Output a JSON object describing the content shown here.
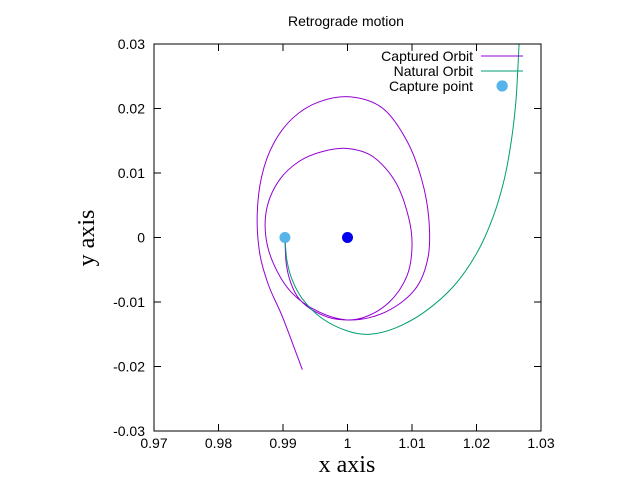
{
  "chart_data": {
    "type": "scatter",
    "title": "Retrograde motion",
    "xlabel": "x axis",
    "ylabel": "y axis",
    "xlim": [
      0.97,
      1.03
    ],
    "ylim": [
      -0.03,
      0.03
    ],
    "x_ticks": [
      0.97,
      0.98,
      0.99,
      1,
      1.01,
      1.02,
      1.03
    ],
    "x_tick_labels": [
      "0.97",
      "0.98",
      "0.99",
      "1",
      "1.01",
      "1.02",
      "1.03"
    ],
    "y_ticks": [
      -0.03,
      -0.02,
      -0.01,
      0,
      0.01,
      0.02,
      0.03
    ],
    "y_tick_labels": [
      "-0.03",
      "-0.02",
      "-0.01",
      "0",
      "0.01",
      "0.02",
      "0.03"
    ],
    "grid": false,
    "legend_position": "top-right",
    "series": [
      {
        "name": "Captured Orbit",
        "type": "line",
        "color": "#9400d3",
        "points": [
          [
            0.9903,
            0.0
          ],
          [
            0.9905,
            -0.004
          ],
          [
            0.9912,
            -0.007
          ],
          [
            0.9925,
            -0.0095
          ],
          [
            0.995,
            -0.0115
          ],
          [
            0.9985,
            -0.0127
          ],
          [
            1.0025,
            -0.0124
          ],
          [
            1.0065,
            -0.01
          ],
          [
            1.0092,
            -0.006
          ],
          [
            1.01,
            -0.0015
          ],
          [
            1.0095,
            0.003
          ],
          [
            1.0075,
            0.0085
          ],
          [
            1.004,
            0.0125
          ],
          [
            1.0,
            0.0138
          ],
          [
            0.996,
            0.0133
          ],
          [
            0.9925,
            0.0118
          ],
          [
            0.9895,
            0.009
          ],
          [
            0.9876,
            0.005
          ],
          [
            0.9873,
            0.0005
          ],
          [
            0.9885,
            -0.004
          ],
          [
            0.9913,
            -0.0085
          ],
          [
            0.9955,
            -0.0115
          ],
          [
            1.0005,
            -0.0128
          ],
          [
            1.006,
            -0.0115
          ],
          [
            1.0105,
            -0.008
          ],
          [
            1.0125,
            -0.003
          ],
          [
            1.0126,
            0.003
          ],
          [
            1.0115,
            0.009
          ],
          [
            1.0092,
            0.015
          ],
          [
            1.0055,
            0.02
          ],
          [
            1.0005,
            0.0218
          ],
          [
            0.9955,
            0.021
          ],
          [
            0.9915,
            0.0185
          ],
          [
            0.9885,
            0.0145
          ],
          [
            0.9867,
            0.0095
          ],
          [
            0.986,
            0.0035
          ],
          [
            0.9864,
            -0.0025
          ],
          [
            0.9878,
            -0.0075
          ],
          [
            0.99,
            -0.0125
          ],
          [
            0.993,
            -0.0205
          ]
        ]
      },
      {
        "name": "Natural Orbit",
        "type": "line",
        "color": "#009e73",
        "points": [
          [
            0.9903,
            0.0
          ],
          [
            0.9906,
            -0.0035
          ],
          [
            0.9914,
            -0.0065
          ],
          [
            0.993,
            -0.0095
          ],
          [
            0.996,
            -0.0125
          ],
          [
            1.0,
            -0.0145
          ],
          [
            1.0035,
            -0.015
          ],
          [
            1.0075,
            -0.014
          ],
          [
            1.012,
            -0.0115
          ],
          [
            1.0165,
            -0.0075
          ],
          [
            1.02,
            -0.0025
          ],
          [
            1.0225,
            0.003
          ],
          [
            1.0243,
            0.009
          ],
          [
            1.0254,
            0.015
          ],
          [
            1.0261,
            0.021
          ],
          [
            1.0264,
            0.026
          ],
          [
            1.0266,
            0.03
          ]
        ]
      },
      {
        "name": "Capture point",
        "type": "point",
        "color": "#56b4e9",
        "points": [
          [
            0.9903,
            0.0
          ],
          [
            1.024,
            0.0235
          ]
        ]
      },
      {
        "type": "point",
        "color": "#0000ee",
        "points": [
          [
            1.0,
            0.0
          ]
        ]
      }
    ]
  }
}
